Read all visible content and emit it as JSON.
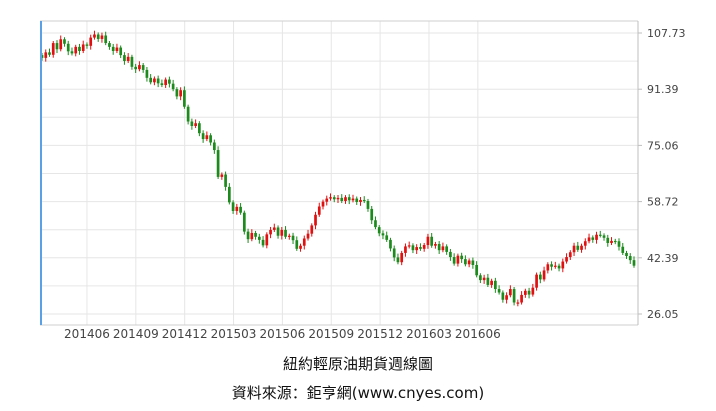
{
  "chart_data": {
    "type": "candlestick",
    "title": "紐約輕原油期貨週線圖",
    "source": "資料來源：鉅亨網(www.cnyes.com)",
    "x_tick_labels": [
      "201406",
      "201409",
      "201412",
      "201503",
      "201506",
      "201509",
      "201512",
      "201603",
      "201606"
    ],
    "y_tick_labels": [
      "107.73",
      "91.39",
      "75.06",
      "58.72",
      "42.39",
      "26.05"
    ],
    "ylim": [
      26.05,
      107.73
    ],
    "y_axis_position": "right",
    "grid": true,
    "up_color": "#e01010",
    "down_color": "#1d8a1d",
    "weekly_close": [
      100.5,
      102.1,
      101.4,
      104.8,
      103.0,
      105.9,
      104.6,
      102.4,
      101.8,
      103.7,
      102.5,
      104.4,
      104.0,
      106.4,
      107.3,
      106.0,
      107.0,
      104.8,
      103.7,
      102.5,
      103.5,
      101.3,
      99.6,
      100.8,
      97.9,
      97.2,
      98.4,
      97.0,
      94.7,
      93.4,
      94.5,
      93.1,
      92.6,
      94.2,
      93.0,
      91.4,
      89.3,
      91.1,
      86.3,
      82.0,
      80.7,
      81.5,
      78.6,
      76.9,
      78.0,
      75.9,
      73.7,
      65.9,
      66.6,
      63.0,
      58.5,
      56.0,
      57.2,
      55.5,
      50.0,
      47.8,
      49.6,
      48.5,
      47.6,
      46.0,
      49.2,
      50.5,
      51.2,
      48.8,
      50.5,
      48.5,
      48.8,
      47.5,
      45.0,
      45.9,
      48.0,
      49.4,
      51.8,
      54.9,
      57.3,
      58.7,
      59.6,
      60.0,
      59.4,
      59.8,
      58.9,
      60.0,
      59.1,
      59.6,
      58.6,
      59.2,
      58.9,
      56.6,
      53.3,
      51.3,
      49.5,
      48.9,
      47.6,
      45.1,
      42.5,
      41.1,
      43.8,
      45.7,
      46.0,
      44.6,
      45.5,
      45.0,
      46.1,
      48.5,
      45.9,
      46.4,
      44.6,
      45.7,
      44.1,
      42.6,
      40.7,
      43.0,
      42.0,
      40.5,
      41.6,
      40.3,
      37.3,
      35.9,
      36.6,
      34.5,
      35.7,
      33.3,
      32.3,
      30.2,
      31.5,
      33.3,
      29.4,
      29.4,
      31.6,
      32.8,
      31.7,
      33.7,
      37.5,
      36.1,
      38.7,
      40.5,
      39.8,
      40.1,
      39.3,
      41.3,
      42.6,
      44.0,
      45.9,
      44.7,
      45.9,
      47.2,
      48.3,
      47.6,
      49.1,
      48.9,
      48.2,
      46.7,
      47.3,
      47.2,
      45.6,
      43.8,
      42.9,
      41.7,
      40.1
    ]
  }
}
